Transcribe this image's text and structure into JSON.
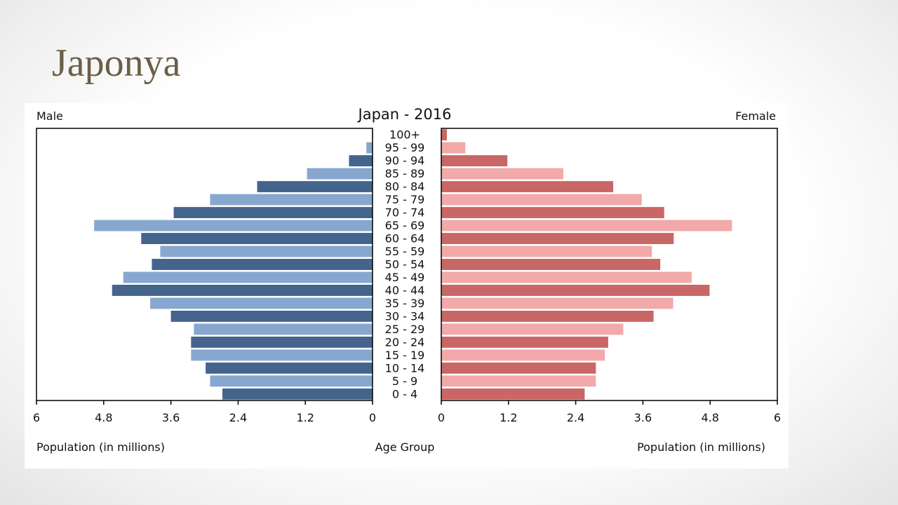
{
  "slide": {
    "title": "Japonya"
  },
  "colors": {
    "male_dark": "#44648c",
    "male_light": "#87a7cf",
    "female_dark": "#c96666",
    "female_light": "#f2a9a9",
    "axis": "#000000"
  },
  "chart_data": {
    "type": "bar",
    "subtype": "population-pyramid",
    "title": "Japan - 2016",
    "left_label": "Male",
    "right_label": "Female",
    "xlabel_left": "Population (in millions)",
    "xlabel_center": "Age Group",
    "xlabel_right": "Population (in millions)",
    "xlim": [
      0,
      6
    ],
    "x_ticks_left": [
      "6",
      "4.8",
      "3.6",
      "2.4",
      "1.2",
      "0"
    ],
    "x_ticks_right": [
      "0",
      "1.2",
      "2.4",
      "3.6",
      "4.8",
      "6"
    ],
    "categories": [
      "100+",
      "95 - 99",
      "90 - 94",
      "85 - 89",
      "80 - 84",
      "75 - 79",
      "70 - 74",
      "65 - 69",
      "60 - 64",
      "55 - 59",
      "50 - 54",
      "45 - 49",
      "40 - 44",
      "35 - 39",
      "30 - 34",
      "25 - 29",
      "20 - 24",
      "15 - 19",
      "10 - 14",
      "5 - 9",
      "0 - 4"
    ],
    "series": [
      {
        "name": "Male",
        "values": [
          0.01,
          0.11,
          0.42,
          1.17,
          2.06,
          2.9,
          3.55,
          4.97,
          4.13,
          3.79,
          3.94,
          4.45,
          4.65,
          3.97,
          3.6,
          3.19,
          3.24,
          3.24,
          2.98,
          2.9,
          2.68
        ]
      },
      {
        "name": "Female",
        "values": [
          0.1,
          0.43,
          1.18,
          2.18,
          3.07,
          3.58,
          3.98,
          5.19,
          4.15,
          3.76,
          3.91,
          4.47,
          4.79,
          4.14,
          3.79,
          3.25,
          2.98,
          2.92,
          2.76,
          2.76,
          2.56
        ]
      }
    ]
  }
}
